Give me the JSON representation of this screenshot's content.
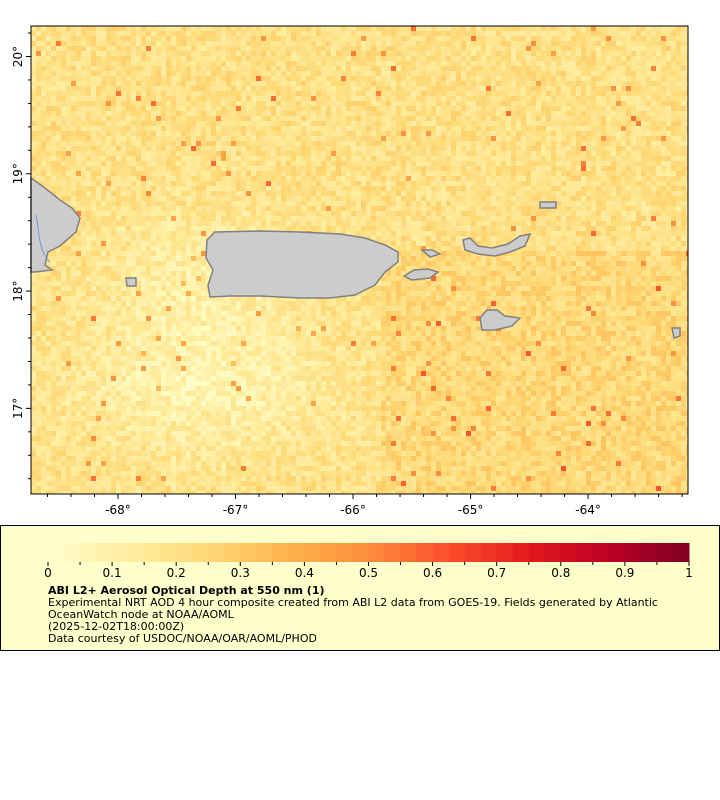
{
  "chart_data": {
    "type": "heatmap",
    "title": "ABI L2+ Aerosol Optical Depth at 550 nm (1)",
    "description_lines": [
      "Experimental NRT AOD 4 hour composite created from ABI L2 data from GOES-19. Fields generated by Atlantic",
      "OceanWatch node at NOAA/AOML",
      "(2025-12-02T18:00:00Z)",
      "Data courtesy of USDOC/NOAA/OAR/AOML/PHOD"
    ],
    "x_ticks": [
      "-68°",
      "-67°",
      "-66°",
      "-65°",
      "-64°"
    ],
    "x_tick_values": [
      -68,
      -67,
      -66,
      -65,
      -64
    ],
    "y_ticks": [
      "20°",
      "19°",
      "18°",
      "17°"
    ],
    "y_tick_values": [
      20,
      19,
      18,
      17
    ],
    "xlim": [
      -68.74,
      -63.15
    ],
    "ylim": [
      16.27,
      20.26
    ],
    "colorbar": {
      "range": [
        0,
        1
      ],
      "tick_labels": [
        "0",
        "0.1",
        "0.2",
        "0.3",
        "0.4",
        "0.5",
        "0.6",
        "0.7",
        "0.8",
        "0.9",
        "1"
      ],
      "colormap": "YlOrRd"
    },
    "land_color": "#cccccc",
    "missing_color": "#808080"
  }
}
